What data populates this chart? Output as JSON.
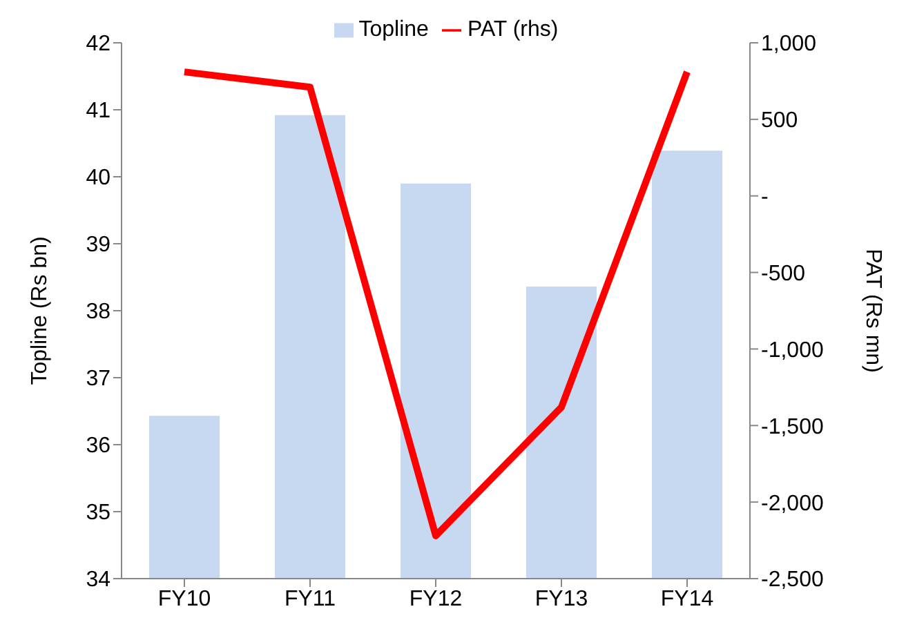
{
  "chart_data": {
    "type": "bar",
    "categories": [
      "FY10",
      "FY11",
      "FY12",
      "FY13",
      "FY14"
    ],
    "series": [
      {
        "name": "Topline",
        "color": "#c6d9f1",
        "values": [
          36.43,
          40.92,
          39.9,
          38.36,
          40.39
        ]
      },
      {
        "name": "PAT (rhs)",
        "type": "line",
        "axis": "y2",
        "color": "#ff0000",
        "values": [
          810,
          710,
          -2220,
          -1380,
          810
        ]
      }
    ],
    "ylabel": "Topline (Rs bn)",
    "y2label": "PAT (Rs mn)",
    "ylim": [
      34,
      42
    ],
    "yticks": [
      34,
      35,
      36,
      37,
      38,
      39,
      40,
      41,
      42
    ],
    "y2lim": [
      -2500,
      1000
    ],
    "y2ticks": [
      {
        "value": -2500,
        "label": "-2,500"
      },
      {
        "value": -2000,
        "label": "-2,000"
      },
      {
        "value": -1500,
        "label": "-1,500"
      },
      {
        "value": -1000,
        "label": "-1,000"
      },
      {
        "value": -500,
        "label": "-500"
      },
      {
        "value": 0,
        "label": "-"
      },
      {
        "value": 500,
        "label": "500"
      },
      {
        "value": 1000,
        "label": "1,000"
      }
    ],
    "grid": false,
    "legend": "top",
    "marker": "none",
    "line_style": "solid"
  }
}
